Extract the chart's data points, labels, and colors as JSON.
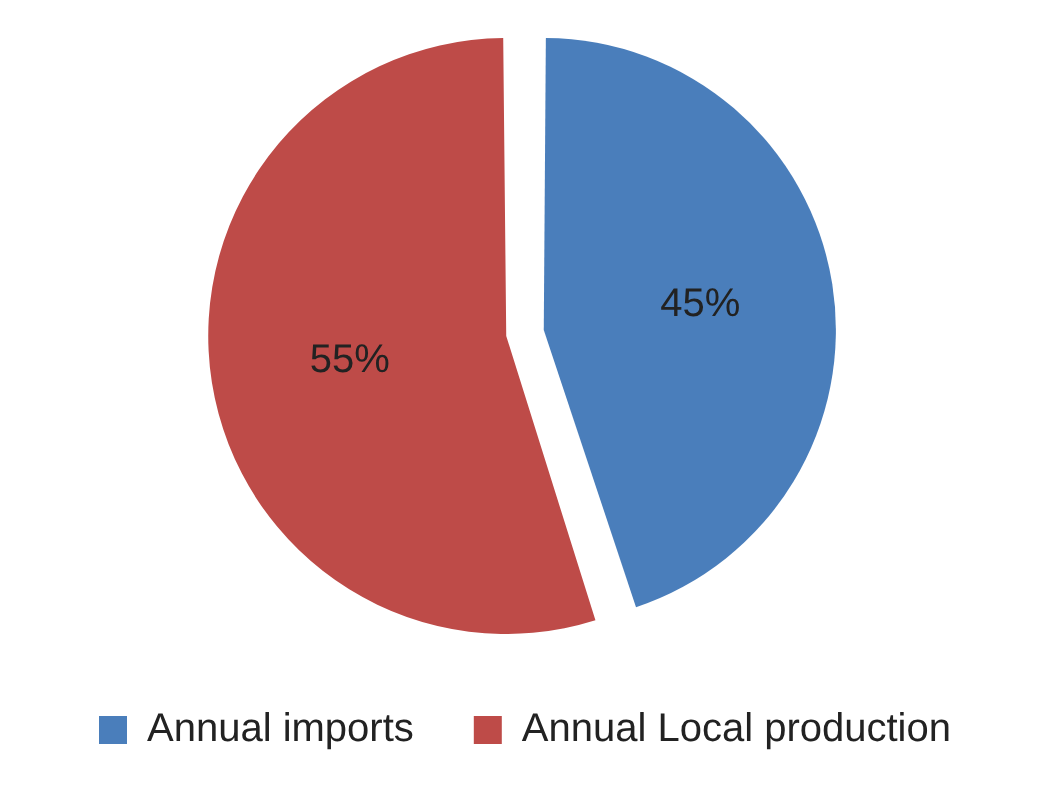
{
  "chart_data": {
    "type": "pie",
    "categories": [
      "Annual imports",
      "Annual Local production"
    ],
    "values": [
      45,
      55
    ],
    "colors": [
      "#4a7ebb",
      "#be4b48"
    ],
    "value_labels": [
      "45%",
      "55%"
    ],
    "legend": "bottom"
  }
}
